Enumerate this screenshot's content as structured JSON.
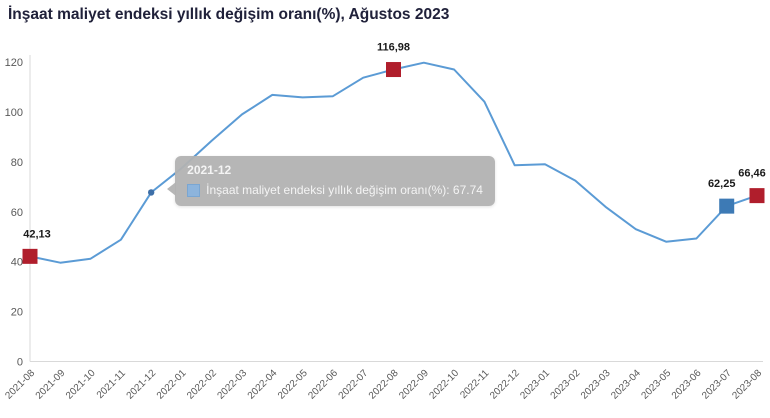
{
  "title": "İnşaat maliyet endeksi yıllık değişim oranı(%), Ağustos 2023",
  "chart_data": {
    "type": "line",
    "title": "İnşaat maliyet endeksi yıllık değişim oranı(%), Ağustos 2023",
    "series_name": "İnşaat maliyet endeksi yıllık değişim oranı(%)",
    "x": [
      "2021-08",
      "2021-09",
      "2021-10",
      "2021-11",
      "2021-12",
      "2022-01",
      "2022-02",
      "2022-03",
      "2022-04",
      "2022-05",
      "2022-06",
      "2022-07",
      "2022-08",
      "2022-09",
      "2022-10",
      "2022-11",
      "2022-12",
      "2023-01",
      "2023-02",
      "2023-03",
      "2023-04",
      "2023-05",
      "2023-06",
      "2023-07",
      "2023-08"
    ],
    "values": [
      42.13,
      39.6,
      41.2,
      48.8,
      67.74,
      77.4,
      88.5,
      99.0,
      106.8,
      105.8,
      106.3,
      113.7,
      116.98,
      119.7,
      117.0,
      104.1,
      78.6,
      79.0,
      72.5,
      62.0,
      53.0,
      48.0,
      49.3,
      62.25,
      66.46
    ],
    "ylim": [
      0,
      120
    ],
    "yticks": [
      0,
      20,
      40,
      60,
      80,
      100,
      120
    ],
    "grid": false,
    "legend": "none",
    "line_color": "#5b9bd5",
    "axis_color": "#d9d9d9",
    "tick_label_color": "#595959",
    "markers": [
      {
        "x": "2021-08",
        "value": 42.13,
        "label": "42,13",
        "color": "#b01e2c",
        "label_dx": 7
      },
      {
        "x": "2022-08",
        "value": 116.98,
        "label": "116,98",
        "color": "#b01e2c",
        "label_dx": 0
      },
      {
        "x": "2023-07",
        "value": 62.25,
        "label": "62,25",
        "color": "#3d7ab5",
        "label_dx": -5
      },
      {
        "x": "2023-08",
        "value": 66.46,
        "label": "66,46",
        "color": "#b01e2c",
        "label_dx": -3
      }
    ]
  },
  "tooltip": {
    "anchor_x": "2021-12",
    "anchor_value": 67.74,
    "title": "2021-12",
    "text": "İnşaat maliyet endeksi yıllık değişim oranı(%): 67.74",
    "icon_color": "#8db4dc",
    "bg_color": "#b2b2b2"
  }
}
